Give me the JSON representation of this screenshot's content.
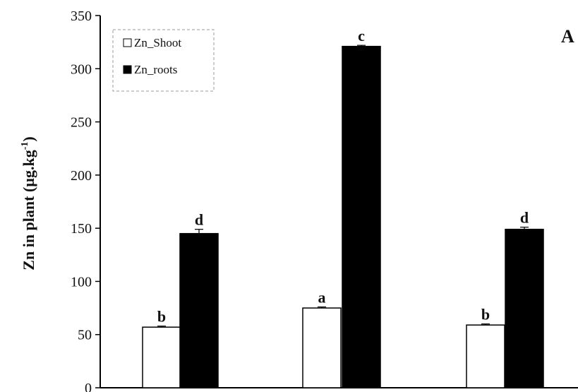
{
  "chart_data": {
    "type": "bar",
    "panel_label": "A",
    "ylabel": "Zn  in plant  (µg.kg",
    "ylabel_sup": "-1",
    "ylabel_close": ")",
    "ylim": [
      0,
      350
    ],
    "yticks": [
      "0",
      "50",
      "100",
      "150",
      "200",
      "250",
      "300",
      "350"
    ],
    "categories": [
      "",
      "",
      ""
    ],
    "series": [
      {
        "name": "Zn_Shoot",
        "color": "#ffffff",
        "values": [
          57,
          75,
          59
        ],
        "errors": [
          1,
          1,
          1
        ],
        "letters": [
          "b",
          "a",
          "b"
        ]
      },
      {
        "name": "Zn_roots",
        "color": "#000000",
        "values": [
          145,
          321,
          149
        ],
        "errors": [
          4,
          1,
          2
        ],
        "letters": [
          "d",
          "c",
          "d"
        ]
      }
    ],
    "legend": {
      "position": "top-left",
      "entries": [
        "Zn_Shoot",
        "Zn_roots"
      ]
    },
    "grid": false
  }
}
